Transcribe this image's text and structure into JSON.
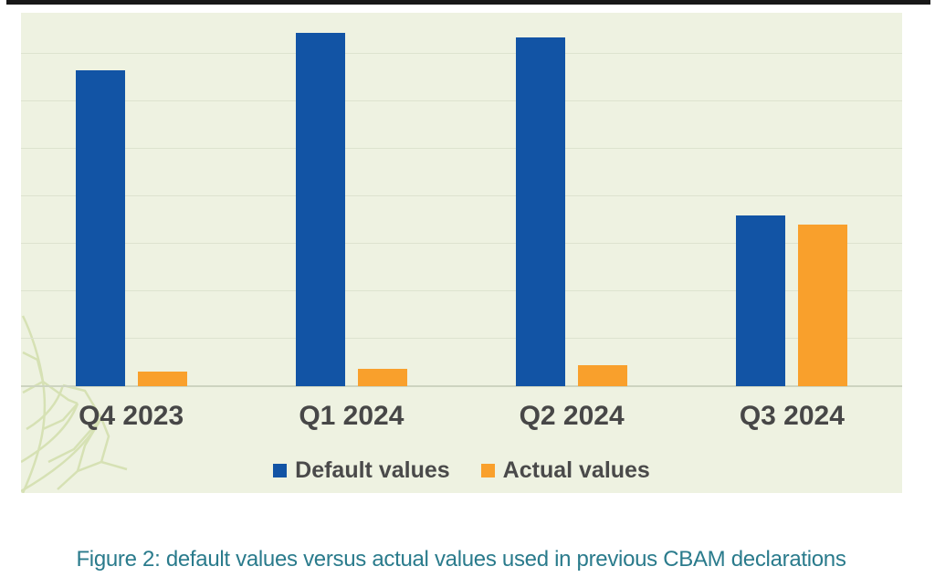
{
  "window": {
    "top_edge_color": "#181818"
  },
  "colors": {
    "panel_bg": "#EEF2E1",
    "gridline": "#DDE3CF",
    "baseline": "#CDD4C0",
    "x_label_text": "#474747",
    "legend_text": "#4A4A4A",
    "caption_text": "#2A7B8C",
    "watermark_vein": "#C3D490"
  },
  "chart_data": {
    "type": "bar",
    "title": "",
    "xlabel": "",
    "ylabel": "",
    "categories": [
      "Q4 2023",
      "Q1 2024",
      "Q2 2024",
      "Q3 2024"
    ],
    "series": [
      {
        "name": "Default values",
        "color": "#1254A5",
        "values": [
          66.5,
          74.5,
          73.5,
          36
        ]
      },
      {
        "name": "Actual values",
        "color": "#F9A02C",
        "values": [
          3,
          3.7,
          4.4,
          34
        ]
      }
    ],
    "ylim": [
      0,
      78.5
    ],
    "gridline_step": 10,
    "y_axis_labels_visible": false,
    "grid": true,
    "legend_position": "bottom"
  },
  "caption": {
    "text": "Figure 2: default values versus actual values used in previous CBAM declarations"
  }
}
